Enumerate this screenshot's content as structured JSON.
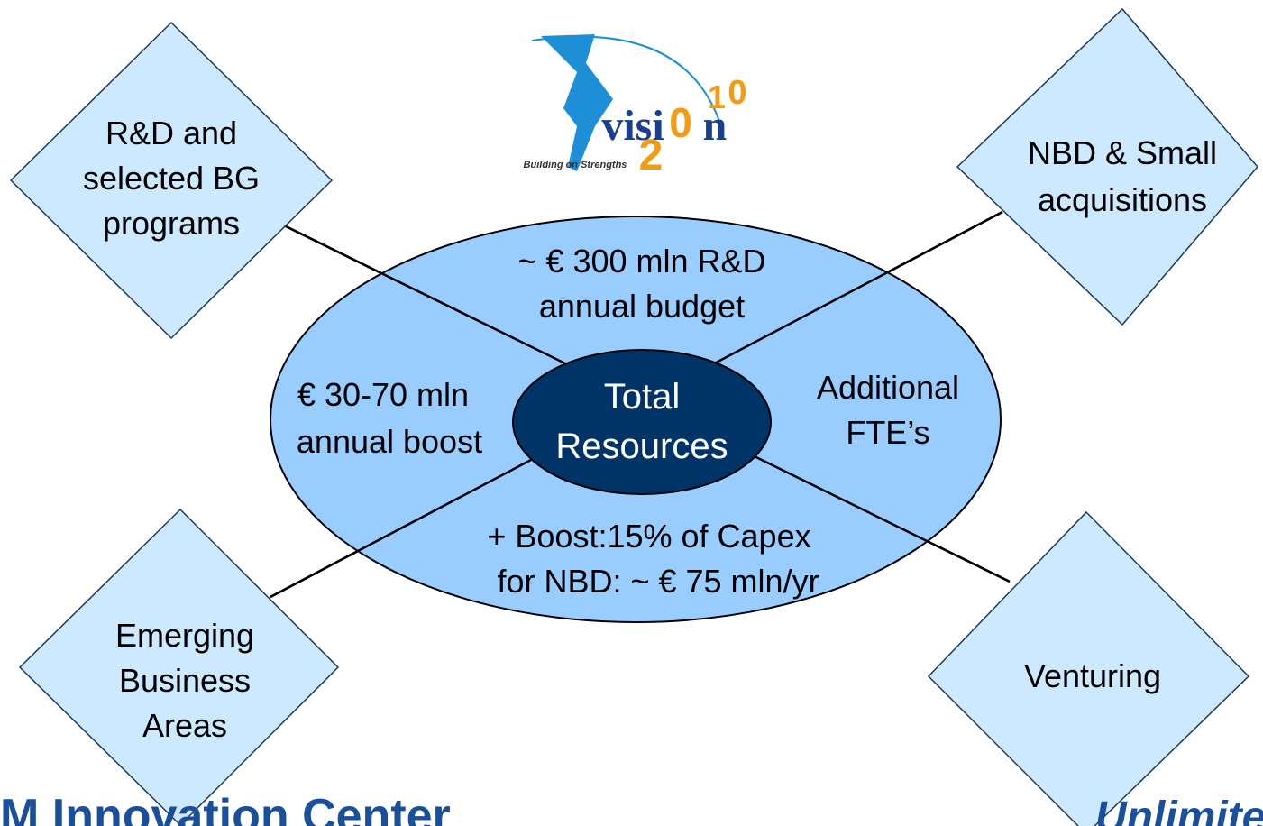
{
  "logo": {
    "word_left": "visi",
    "word_right": "n",
    "year": [
      "2",
      "0",
      "1",
      "0"
    ],
    "tagline": "Building on Strengths"
  },
  "center": {
    "lines": [
      "Total",
      "Resources"
    ]
  },
  "ring": {
    "top": [
      "~ € 300 mln R&D",
      "annual budget"
    ],
    "left": [
      "€ 30-70 mln",
      "annual boost"
    ],
    "right": [
      "Additional",
      "FTE’s"
    ],
    "bottom": [
      "+ Boost:15% of Capex",
      "for NBD: ~ € 75 mln/yr"
    ]
  },
  "nodes": [
    {
      "lines": [
        "R&D and",
        "selected BG",
        "programs"
      ]
    },
    {
      "lines": [
        "NBD & Small",
        "acquisitions"
      ]
    },
    {
      "lines": [
        "Emerging",
        "Business",
        "Areas"
      ]
    },
    {
      "lines": [
        "Venturing"
      ]
    }
  ],
  "footer": {
    "title": "M Innovation Center",
    "tag": "Unlimited"
  }
}
